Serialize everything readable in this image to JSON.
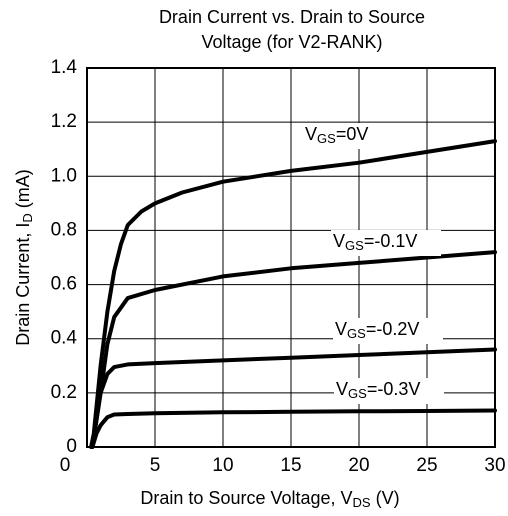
{
  "chart_data": {
    "type": "line",
    "title": [
      "Drain Current vs. Drain to Source",
      "Voltage (for V2-RANK)"
    ],
    "xlabel": {
      "main": "Drain to Source Voltage, V",
      "sub": "DS",
      "rest": " (V)"
    },
    "ylabel": {
      "main": "Drain Current, I",
      "sub": "D",
      "rest": " (mA)"
    },
    "xlim": [
      0,
      30
    ],
    "xticks": [
      0,
      5,
      10,
      15,
      20,
      25,
      30
    ],
    "ylim": [
      0,
      1.4
    ],
    "yticks": [
      0,
      0.2,
      0.4,
      0.6,
      0.8,
      {
        "value": 1,
        "label": "1.0"
      },
      1.2,
      1.4
    ],
    "grid": true,
    "series": [
      {
        "name": {
          "main": "V",
          "sub": "GS",
          "rest": "=0V"
        },
        "color": "#000000",
        "x": [
          0.3,
          0.5,
          1,
          1.5,
          2,
          2.5,
          3,
          4,
          5,
          7,
          10,
          15,
          20,
          25,
          30
        ],
        "values": [
          0,
          0.05,
          0.3,
          0.5,
          0.65,
          0.75,
          0.82,
          0.87,
          0.9,
          0.94,
          0.98,
          1.02,
          1.05,
          1.09,
          1.13
        ]
      },
      {
        "name": {
          "main": "V",
          "sub": "GS",
          "rest": "=-0.1V"
        },
        "color": "#000000",
        "x": [
          0.4,
          0.7,
          1,
          1.5,
          2,
          3,
          5,
          10,
          15,
          20,
          25,
          30
        ],
        "values": [
          0,
          0.1,
          0.2,
          0.38,
          0.48,
          0.55,
          0.58,
          0.63,
          0.66,
          0.68,
          0.7,
          0.72
        ]
      },
      {
        "name": {
          "main": "V",
          "sub": "GS",
          "rest": "=-0.2V"
        },
        "color": "#000000",
        "x": [
          0.4,
          0.7,
          1,
          1.5,
          2,
          3,
          5,
          10,
          15,
          20,
          25,
          30
        ],
        "values": [
          0,
          0.1,
          0.2,
          0.27,
          0.295,
          0.305,
          0.31,
          0.32,
          0.33,
          0.34,
          0.35,
          0.36
        ]
      },
      {
        "name": {
          "main": "V",
          "sub": "GS",
          "rest": "=-0.3V"
        },
        "color": "#000000",
        "x": [
          0.4,
          0.7,
          1,
          1.5,
          2,
          3,
          5,
          10,
          15,
          20,
          25,
          30
        ],
        "values": [
          0,
          0.05,
          0.08,
          0.11,
          0.12,
          0.122,
          0.125,
          0.128,
          0.13,
          0.132,
          0.133,
          0.135
        ]
      }
    ]
  }
}
